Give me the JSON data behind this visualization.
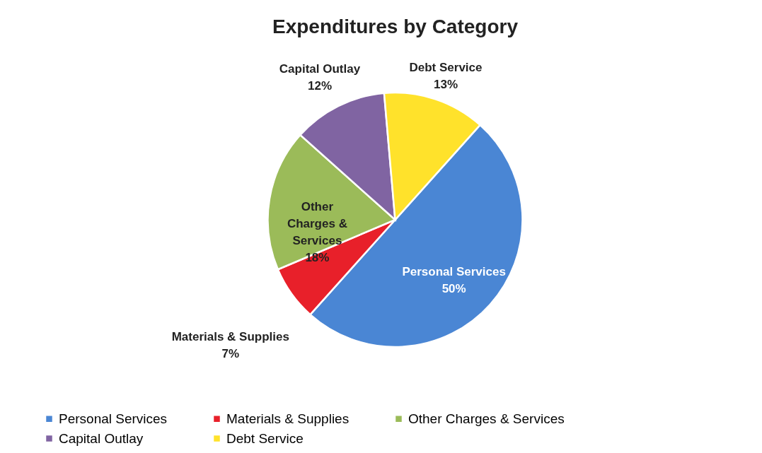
{
  "chart_data": {
    "type": "pie",
    "title": "Expenditures by Category",
    "categories": [
      "Personal Services",
      "Materials & Supplies",
      "Other Charges & Services",
      "Capital Outlay",
      "Debt Service"
    ],
    "values": [
      50,
      7,
      18,
      12,
      13
    ],
    "colors": [
      "#4a86d4",
      "#e8202a",
      "#9bbb59",
      "#8064a2",
      "#ffe22b"
    ],
    "value_labels": [
      "50%",
      "7%",
      "18%",
      "12%",
      "13%"
    ],
    "legend": "bottom"
  }
}
